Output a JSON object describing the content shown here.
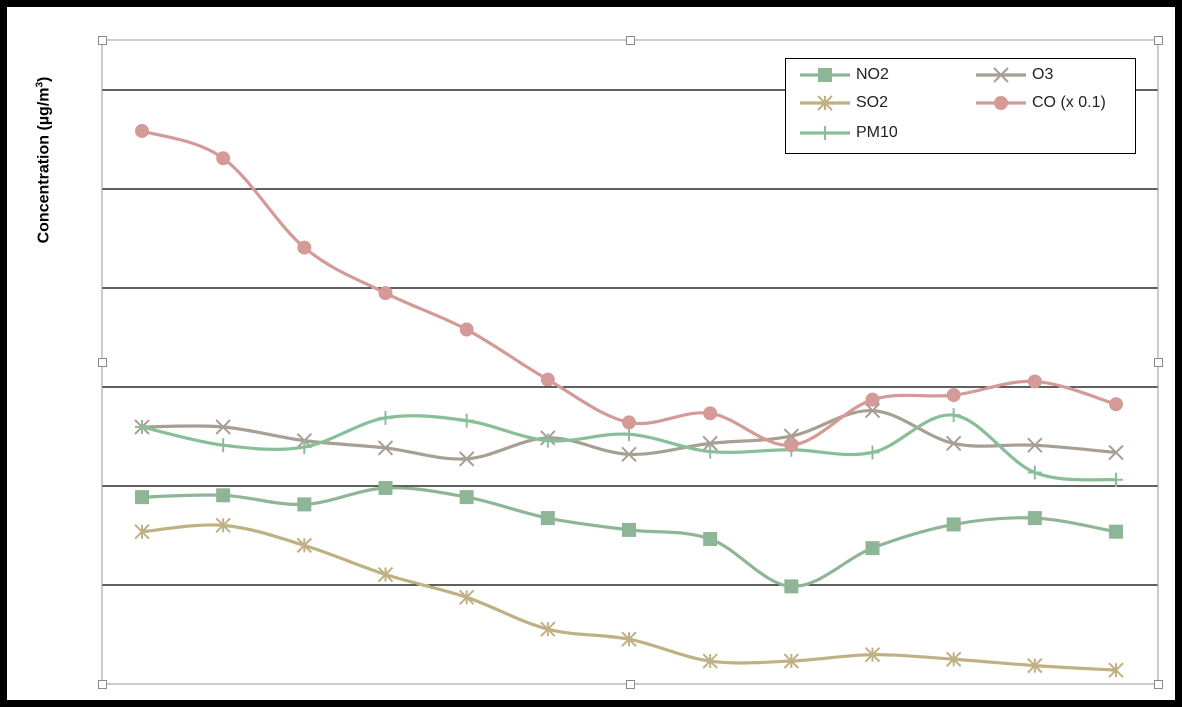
{
  "chart_data": {
    "type": "line",
    "title": "",
    "xlabel": "",
    "ylabel": "Concentration (µg/m",
    "ylabel_sup": "3",
    "ylabel_close": ")",
    "grid": true,
    "legend_position": "top-right",
    "x": [
      1,
      2,
      3,
      4,
      5,
      6,
      7,
      8,
      9,
      10,
      11,
      12,
      13
    ],
    "ylim": [
      0,
      65
    ],
    "series": [
      {
        "name": "NO2",
        "color": "#8fb597",
        "marker": "square",
        "values": [
          20.3,
          20.5,
          19.5,
          21.3,
          20.3,
          18.0,
          16.7,
          15.7,
          10.5,
          14.7,
          17.3,
          18.0,
          16.5
        ]
      },
      {
        "name": "O3",
        "color": "#a89f94",
        "marker": "x",
        "values": [
          28.0,
          28.0,
          26.5,
          25.7,
          24.5,
          26.8,
          25.0,
          26.2,
          27.0,
          29.8,
          26.2,
          26.0,
          25.2
        ]
      },
      {
        "name": "SO2",
        "color": "#bfb183",
        "marker": "asterisk",
        "values": [
          16.5,
          17.2,
          15.0,
          11.8,
          9.3,
          5.8,
          4.7,
          2.3,
          2.3,
          3.0,
          2.5,
          1.8,
          1.3
        ]
      },
      {
        "name": "CO (x 0.1)",
        "color": "#d49a97",
        "marker": "circle",
        "values": [
          60.5,
          57.5,
          47.7,
          42.7,
          38.7,
          33.2,
          28.5,
          29.5,
          26.0,
          31.0,
          31.5,
          33.0,
          30.5
        ]
      },
      {
        "name": "PM10",
        "color": "#88bf98",
        "marker": "plus",
        "values": [
          28.0,
          26.0,
          25.8,
          29.0,
          28.7,
          26.5,
          27.2,
          25.3,
          25.5,
          25.2,
          29.3,
          23.0,
          22.2
        ]
      }
    ]
  }
}
